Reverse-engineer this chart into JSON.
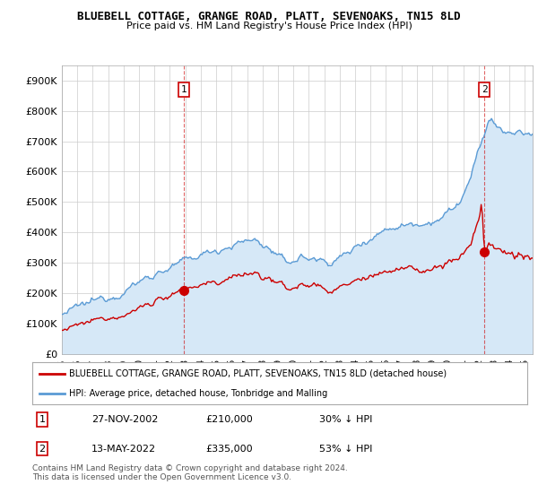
{
  "title": "BLUEBELL COTTAGE, GRANGE ROAD, PLATT, SEVENOAKS, TN15 8LD",
  "subtitle": "Price paid vs. HM Land Registry's House Price Index (HPI)",
  "ylabel_ticks": [
    "£0",
    "£100K",
    "£200K",
    "£300K",
    "£400K",
    "£500K",
    "£600K",
    "£700K",
    "£800K",
    "£900K"
  ],
  "ytick_values": [
    0,
    100000,
    200000,
    300000,
    400000,
    500000,
    600000,
    700000,
    800000,
    900000
  ],
  "ylim": [
    0,
    950000
  ],
  "xlim_start": 1995.0,
  "xlim_end": 2025.5,
  "hpi_color": "#5b9bd5",
  "hpi_fill_color": "#d6e8f7",
  "price_color": "#cc0000",
  "sale1_date": 2002.92,
  "sale1_price": 210000,
  "sale2_date": 2022.37,
  "sale2_price": 335000,
  "legend_line1": "BLUEBELL COTTAGE, GRANGE ROAD, PLATT, SEVENOAKS, TN15 8LD (detached house)",
  "legend_line2": "HPI: Average price, detached house, Tonbridge and Malling",
  "table_row1": [
    "1",
    "27-NOV-2002",
    "£210,000",
    "30% ↓ HPI"
  ],
  "table_row2": [
    "2",
    "13-MAY-2022",
    "£335,000",
    "53% ↓ HPI"
  ],
  "footnote": "Contains HM Land Registry data © Crown copyright and database right 2024.\nThis data is licensed under the Open Government Licence v3.0.",
  "background_color": "#ffffff",
  "grid_color": "#cccccc"
}
